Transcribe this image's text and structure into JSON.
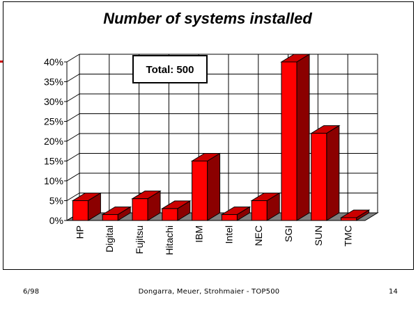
{
  "chart_data": {
    "type": "bar",
    "title": "Number of systems installed",
    "xlabel": "",
    "ylabel": "",
    "ylim": [
      0,
      40
    ],
    "y_tick_labels": [
      "0%",
      "5%",
      "10%",
      "15%",
      "20%",
      "25%",
      "30%",
      "35%",
      "40%"
    ],
    "y_ticks": [
      0,
      5,
      10,
      15,
      20,
      25,
      30,
      35,
      40
    ],
    "categories": [
      "HP",
      "Digital",
      "Fujitsu",
      "Hitachi",
      "IBM",
      "Intel",
      "NEC",
      "SGI",
      "SUN",
      "TMC"
    ],
    "values": [
      5,
      1.5,
      5.5,
      3,
      15,
      1.5,
      5,
      40,
      22,
      0.7
    ],
    "annotation": "Total: 500",
    "grid": true,
    "style": "3d",
    "colors": {
      "bar_front": "#ff0000",
      "bar_side": "#8b0000",
      "bar_top": "#cc0000",
      "floor": "#808080"
    }
  },
  "footer": {
    "left": "6/98",
    "center": "Dongarra, Meuer, Strohmaier - TOP500",
    "right": "14"
  }
}
